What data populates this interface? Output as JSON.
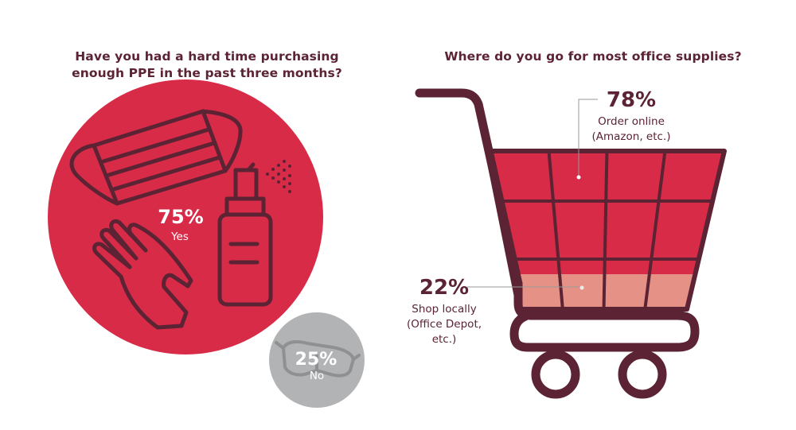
{
  "colors": {
    "maroon": "#5b2333",
    "red": "#d72b48",
    "light_red": "#e69185",
    "gray": "#b2b3b4",
    "white": "#ffffff"
  },
  "icons": [
    "face-mask-icon",
    "spray-bottle-icon",
    "glove-icon",
    "safety-goggles-icon",
    "shopping-cart-icon"
  ],
  "left": {
    "question_line1": "Have you had a hard time purchasing",
    "question_line2": "enough PPE in the past three months?"
  },
  "right": {
    "question": "Where do you go for most office supplies?"
  },
  "chart_data": [
    {
      "type": "bubble",
      "title": "Have you had a hard time purchasing enough PPE in the past three months?",
      "categories": [
        "Yes",
        "No"
      ],
      "values": [
        75,
        25
      ],
      "value_labels": [
        "75%",
        "25%"
      ],
      "colors": [
        "#d72b48",
        "#b2b3b4"
      ]
    },
    {
      "type": "bar",
      "orientation": "stacked-vertical",
      "title": "Where do you go for most office supplies?",
      "categories": [
        "Order online (Amazon, etc.)",
        "Shop locally (Office Depot, etc.)"
      ],
      "values": [
        78,
        22
      ],
      "value_labels": [
        "78%",
        "22%"
      ],
      "label_lines": [
        [
          "Order online",
          "(Amazon, etc.)"
        ],
        [
          "Shop locally",
          "(Office Depot,",
          "etc.)"
        ]
      ],
      "colors": [
        "#d72b48",
        "#e69185"
      ]
    }
  ]
}
